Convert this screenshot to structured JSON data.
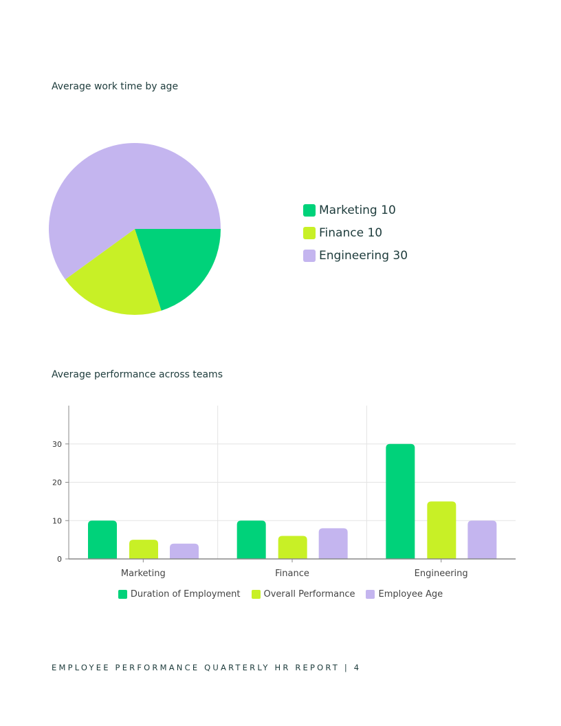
{
  "colors": {
    "marketing": "#00d27a",
    "finance": "#c8f026",
    "engineering": "#c4b5ef",
    "text": "#1d3b3b"
  },
  "chart_data": [
    {
      "type": "pie",
      "title": "Average work time by age",
      "legend_position": "right",
      "slices": [
        {
          "label": "Marketing 10",
          "name": "Marketing",
          "value": 10,
          "color": "#00d27a"
        },
        {
          "label": "Finance 10",
          "name": "Finance",
          "value": 10,
          "color": "#c8f026"
        },
        {
          "label": "Engineering 30",
          "name": "Engineering",
          "value": 30,
          "color": "#c4b5ef"
        }
      ]
    },
    {
      "type": "bar",
      "title": "Average performance across teams",
      "categories": [
        "Marketing",
        "Finance",
        "Engineering"
      ],
      "series": [
        {
          "name": "Duration of Employment",
          "values": [
            10,
            10,
            30
          ],
          "color": "#00d27a"
        },
        {
          "name": "Overall Performance",
          "values": [
            5,
            6,
            15
          ],
          "color": "#c8f026"
        },
        {
          "name": "Employee Age",
          "values": [
            4,
            8,
            10
          ],
          "color": "#c4b5ef"
        }
      ],
      "yticks": [
        "0",
        "10",
        "20",
        "30"
      ],
      "ylim": [
        0,
        40
      ],
      "grid": true,
      "legend_position": "bottom"
    }
  ],
  "footer": "EMPLOYEE PERFORMANCE QUARTERLY HR REPORT | 4"
}
